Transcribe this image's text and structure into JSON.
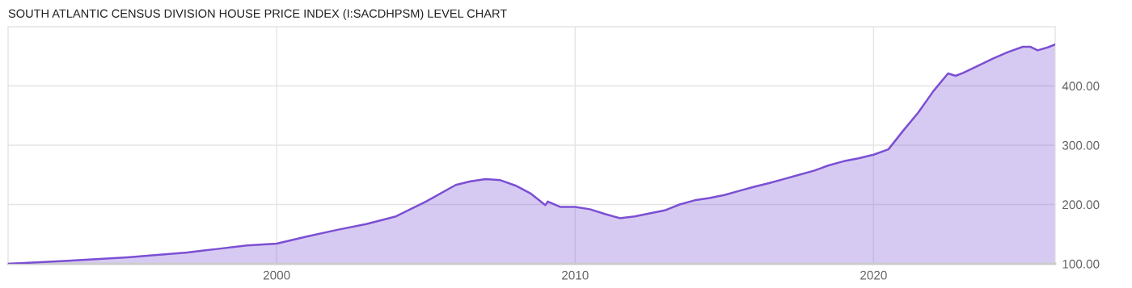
{
  "chart_data": {
    "type": "area",
    "title": "SOUTH ATLANTIC CENSUS DIVISION HOUSE PRICE INDEX (I:SACDHPSM) LEVEL CHART",
    "x": [
      "1991-01",
      "1993-01",
      "1995-01",
      "1997-01",
      "1998-01",
      "1999-01",
      "2000-01",
      "2001-01",
      "2002-01",
      "2003-01",
      "2004-01",
      "2005-01",
      "2006-01",
      "2006-07",
      "2007-01",
      "2007-07",
      "2008-01",
      "2008-07",
      "2009-01",
      "2009-02",
      "2009-07",
      "2010-01",
      "2010-07",
      "2011-01",
      "2011-07",
      "2012-01",
      "2012-07",
      "2013-01",
      "2013-07",
      "2014-01",
      "2014-07",
      "2015-01",
      "2015-07",
      "2016-01",
      "2016-07",
      "2017-01",
      "2017-07",
      "2018-01",
      "2018-07",
      "2019-01",
      "2019-07",
      "2020-01",
      "2020-07",
      "2021-01",
      "2021-07",
      "2022-01",
      "2022-07",
      "2022-10",
      "2023-01",
      "2023-07",
      "2024-01",
      "2024-07",
      "2025-01",
      "2025-04",
      "2025-07",
      "2025-11",
      "2026-02"
    ],
    "series": [
      {
        "color": "#7b4fd3",
        "values": [
          100,
          105,
          111,
          119,
          125,
          131,
          134,
          146,
          157,
          167,
          180,
          205,
          233,
          239,
          243,
          241,
          232,
          219,
          199,
          205,
          196,
          196,
          192,
          184,
          177,
          180,
          185,
          190,
          200,
          207,
          211,
          216,
          223,
          230,
          236,
          243,
          250,
          257,
          266,
          273,
          278,
          284,
          293,
          325,
          355,
          391,
          421,
          417,
          422,
          434,
          446,
          457,
          466,
          466,
          460,
          465,
          470
        ]
      }
    ],
    "xlim": [
      "1991-01",
      "2026-02"
    ],
    "xticks": [
      "2000",
      "2010",
      "2020"
    ],
    "ylim": [
      100,
      500
    ],
    "yticks": [
      {
        "value": 100,
        "label": "100.00"
      },
      {
        "value": 200,
        "label": "200.00"
      },
      {
        "value": 300,
        "label": "300.00"
      },
      {
        "value": 400,
        "label": "400.00"
      },
      {
        "value": 500,
        "label": null
      }
    ],
    "grid": true,
    "legend": false
  }
}
